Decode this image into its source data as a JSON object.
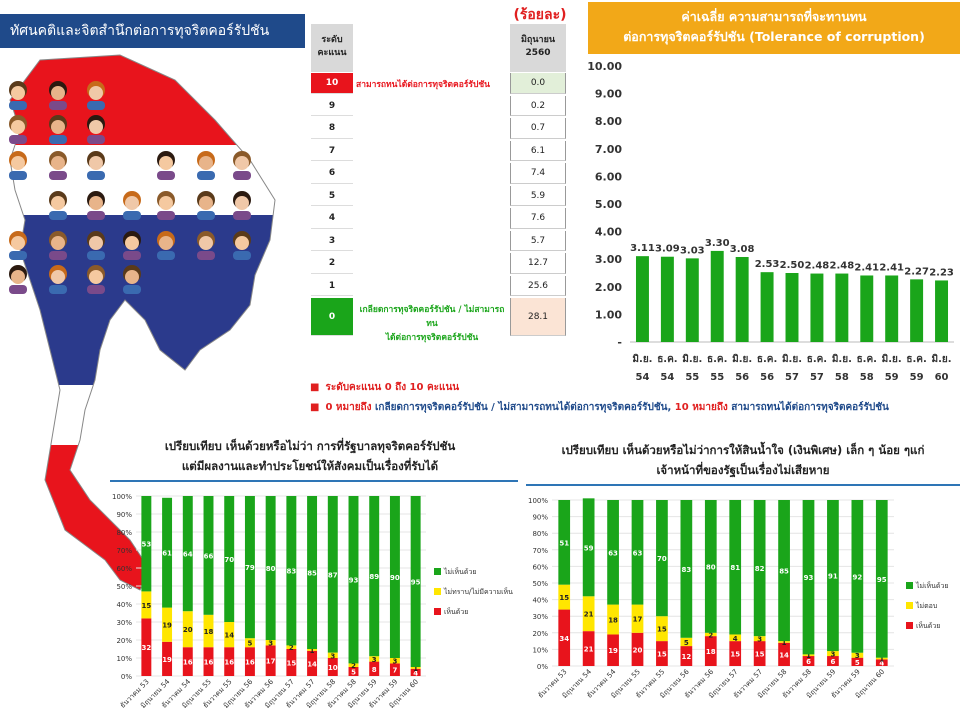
{
  "page": {
    "title": "ทัศนคติและจิตสำนึกต่อการทุจริตคอร์รัปชัน"
  },
  "score_table": {
    "unit": "(ร้อยละ)",
    "header_left_line1": "ระดับ",
    "header_left_line2": "คะแนน",
    "header_right_line1": "มิถุนายน",
    "header_right_line2": "2560",
    "rows": [
      {
        "score": "10",
        "label": "สามารถทนได้ต่อการทุจริตคอร์รัปชัน",
        "value": "0.0"
      },
      {
        "score": "9",
        "label": "",
        "value": "0.2"
      },
      {
        "score": "8",
        "label": "",
        "value": "0.7"
      },
      {
        "score": "7",
        "label": "",
        "value": "6.1"
      },
      {
        "score": "6",
        "label": "",
        "value": "7.4"
      },
      {
        "score": "5",
        "label": "",
        "value": "5.9"
      },
      {
        "score": "4",
        "label": "",
        "value": "7.6"
      },
      {
        "score": "3",
        "label": "",
        "value": "5.7"
      },
      {
        "score": "2",
        "label": "",
        "value": "12.7"
      },
      {
        "score": "1",
        "label": "",
        "value": "25.6"
      },
      {
        "score": "0",
        "label": "เกลียดการทุจริตคอร์รัปชัน / ไม่สามารถทน",
        "label2": "ได้ต่อการทุจริตคอร์รัปชัน",
        "value": "28.1"
      }
    ]
  },
  "bar_header": {
    "line1": "ค่าเฉลี่ย ความสามารถที่จะทานทน",
    "line2": "ต่อการทุจริตคอร์รัปชัน (Tolerance of corruption)"
  },
  "notes": {
    "line1_red": "ระดับคะแนน 0 ถึง 10 คะแนน",
    "line2_a": "0 หมายถึง",
    "line2_b": "เกลียดการทุจริตคอร์รัปชัน / ไม่สามารถทนได้ต่อการทุจริตคอร์รัปชัน,",
    "line2_c": "10 หมายถึง",
    "line2_d": "สามารถทนได้ต่อการทุจริตคอร์รัปชัน"
  },
  "panel1": {
    "title_line1": "เปรียบเทียบ เห็นด้วยหรือไม่ว่า  การที่รัฐบาลทุจริตคอร์รัปชัน",
    "title_line2": "แต่มีผลงานและทำประโยชน์ให้สังคมเป็นเรื่องที่รับได้"
  },
  "panel2": {
    "title_line1": "เปรียบเทียบ เห็นด้วยหรือไม่ว่าการให้สินน้ำใจ (เงินพิเศษ) เล็ก ๆ น้อย ๆแก่",
    "title_line2": "เจ้าหน้าที่ของรัฐเป็นเรื่องไม่เสียหาย"
  },
  "colors": {
    "green": "#1aa51a",
    "yellow": "#ffe600",
    "red": "#e8141c",
    "orange": "#f2a818",
    "blue": "#1f4a8a"
  },
  "chart_data": [
    {
      "type": "bar",
      "categories": [
        "มิ.ย. 54",
        "ธ.ค. 54",
        "มิ.ย. 55",
        "ธ.ค. 55",
        "มิ.ย. 56",
        "ธ.ค. 56",
        "มิ.ย. 57",
        "ธ.ค. 57",
        "มิ.ย. 58",
        "ธ.ค. 58",
        "มิ.ย. 59",
        "ธ.ค. 59",
        "มิ.ย. 60"
      ],
      "values": [
        3.11,
        3.09,
        3.03,
        3.3,
        3.08,
        2.53,
        2.5,
        2.48,
        2.48,
        2.41,
        2.41,
        2.27,
        2.23
      ],
      "value_labels": [
        "3.11",
        "3.09",
        "3.03",
        "3.30",
        "3.08",
        "2.53",
        "2.50",
        "2.48",
        "2.48",
        "2.41",
        "2.41",
        "2.27",
        "2.23"
      ],
      "ylim": [
        0,
        10
      ],
      "yticks": [
        "-",
        "1.00",
        "2.00",
        "3.00",
        "4.00",
        "5.00",
        "6.00",
        "7.00",
        "8.00",
        "9.00",
        "10.00"
      ],
      "grid": false
    },
    {
      "type": "bar",
      "stacked": true,
      "categories": [
        "ธันวาคม 53",
        "มิถุนายน 54",
        "ธันวาคม 54",
        "มิถุนายน 55",
        "ธันวาคม 55",
        "มิถุนายน 56",
        "ธันวาคม 56",
        "มิถุนายน 57",
        "ธันวาคม 57",
        "มิถุนายน 58",
        "ธันวาคม 58",
        "มิถุนายน 59",
        "ธันวาคม 59",
        "มิถุนายน 60"
      ],
      "series": [
        {
          "name": "เห็นด้วย",
          "values": [
            32,
            19,
            16,
            16,
            16,
            16,
            17,
            15,
            14,
            10,
            5,
            8,
            7,
            4
          ]
        },
        {
          "name": "ไม่ทราบ/ไม่มีความเห็น",
          "values": [
            15,
            19,
            20,
            18,
            14,
            5,
            3,
            2,
            1,
            3,
            2,
            3,
            3,
            1
          ]
        },
        {
          "name": "ไม่เห็นด้วย",
          "values": [
            53,
            61,
            64,
            66,
            70,
            79,
            80,
            83,
            85,
            87,
            93,
            89,
            90,
            95
          ]
        }
      ],
      "labels": {
        "เห็นด้วย": [
          "32",
          "19",
          "16",
          "16",
          "16",
          "16",
          "17",
          "15",
          "14",
          "10",
          "5",
          "8",
          "7",
          "4"
        ],
        "ไม่ทราบ/ไม่มีความเห็น": [
          "15",
          "19",
          "20",
          "18",
          "14",
          "5",
          "3",
          "2",
          "1",
          "3",
          "2",
          "3",
          "3",
          "1"
        ],
        "ไม่เห็นด้วย": [
          "53",
          "61",
          "64",
          "66",
          "70",
          "79",
          "80",
          "83",
          "85",
          "87",
          "93",
          "89",
          "90",
          "95"
        ]
      },
      "yticks": [
        "0%",
        "10%",
        "20%",
        "30%",
        "40%",
        "50%",
        "60%",
        "70%",
        "80%",
        "90%",
        "100%"
      ],
      "legend": "right"
    },
    {
      "type": "bar",
      "stacked": true,
      "categories": [
        "ธันวาคม 53",
        "มิถุนายน 54",
        "ธันวาคม 54",
        "มิถุนายน 55",
        "ธันวาคม 55",
        "มิถุนายน 56",
        "ธันวาคม 56",
        "มิถุนายน 57",
        "ธันวาคม 57",
        "มิถุนายน 58",
        "ธันวาคม 58",
        "มิถุนายน 59",
        "ธันวาคม 59",
        "มิถุนายน 60"
      ],
      "series": [
        {
          "name": "เห็นด้วย",
          "values": [
            34,
            21,
            19,
            20,
            15,
            12,
            18,
            15,
            15,
            14,
            6,
            6,
            5,
            4
          ]
        },
        {
          "name": "ไม่ตอบ",
          "values": [
            15,
            21,
            18,
            17,
            15,
            5,
            2,
            4,
            3,
            1,
            1,
            3,
            3,
            1
          ]
        },
        {
          "name": "ไม่เห็นด้วย",
          "values": [
            51,
            59,
            63,
            63,
            70,
            83,
            80,
            81,
            82,
            85,
            93,
            91,
            92,
            95
          ]
        }
      ],
      "labels": {
        "เห็นด้วย": [
          "34",
          "21",
          "19",
          "20",
          "15",
          "12",
          "18",
          "15",
          "15",
          "14",
          "6",
          "6",
          "5",
          "4"
        ],
        "ไม่ตอบ": [
          "15",
          "21",
          "18",
          "17",
          "15",
          "5",
          "2",
          "4",
          "3",
          "1",
          "1",
          "3",
          "3",
          "1"
        ],
        "ไม่เห็นด้วย": [
          "51",
          "59",
          "63",
          "63",
          "70",
          "83",
          "80",
          "81",
          "82",
          "85",
          "93",
          "91",
          "92",
          "95"
        ]
      },
      "yticks": [
        "0%",
        "10%",
        "20%",
        "30%",
        "40%",
        "50%",
        "60%",
        "70%",
        "80%",
        "90%",
        "100%"
      ],
      "legend": "right"
    }
  ]
}
